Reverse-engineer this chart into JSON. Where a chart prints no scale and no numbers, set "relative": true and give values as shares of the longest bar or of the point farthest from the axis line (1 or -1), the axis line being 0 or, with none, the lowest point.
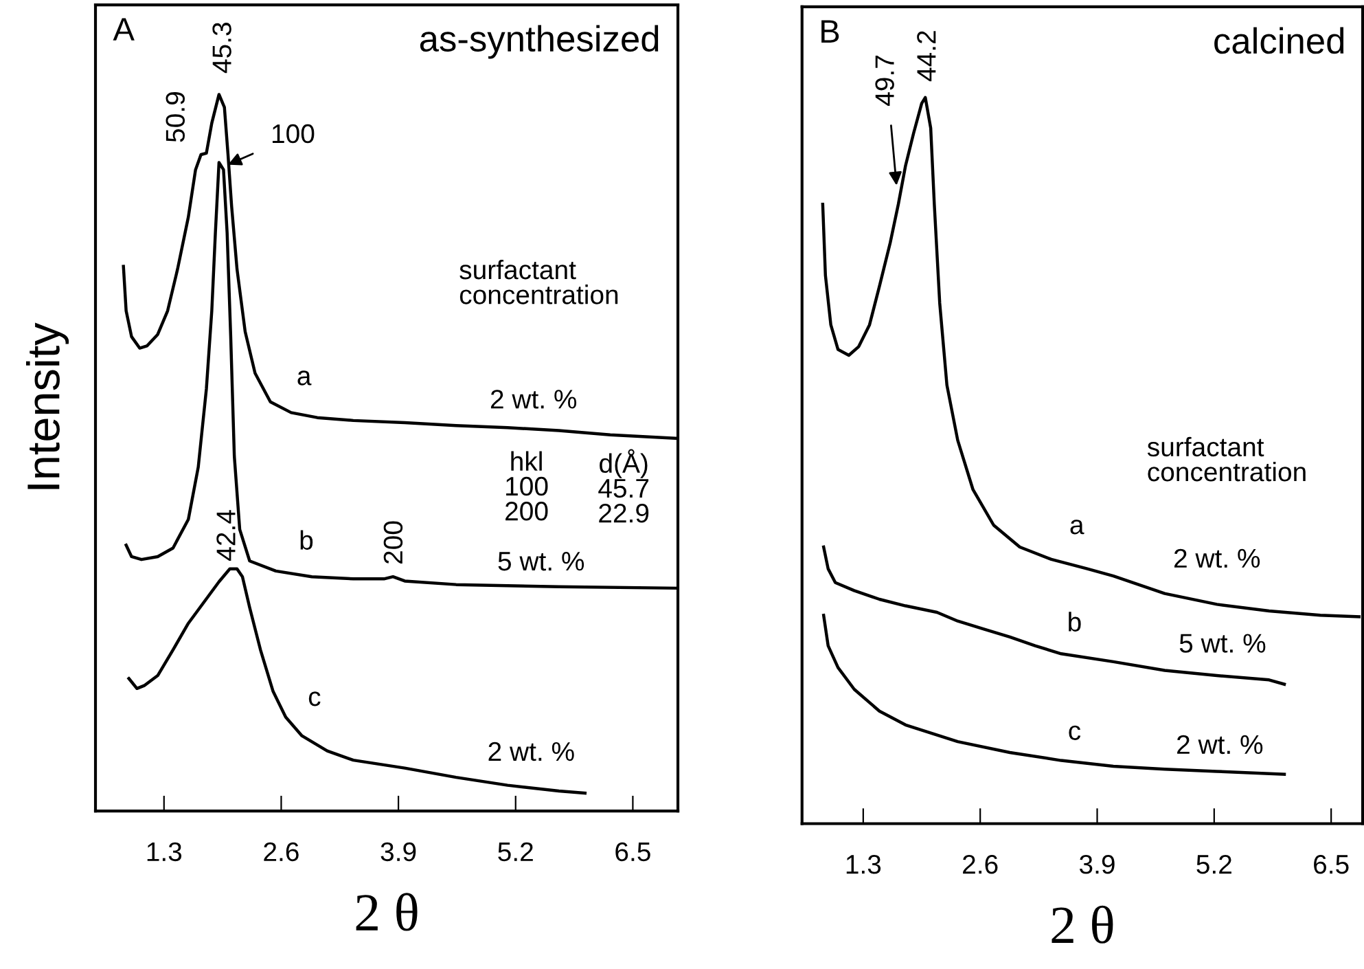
{
  "chart_data": [
    {
      "type": "line",
      "title": "A",
      "subtitle": "as-synthesized",
      "xlabel": "2 θ",
      "ylabel": "Intensity",
      "relative": true,
      "tick_labels": "x",
      "xlim": [
        0.54,
        7.0
      ],
      "xticks": [
        1.3,
        2.6,
        3.9,
        5.2,
        6.5
      ],
      "line_style": "solid",
      "series": [
        {
          "color": "#000000",
          "x": [
            0.85,
            0.88,
            0.94,
            1.03,
            1.11,
            1.23,
            1.34,
            1.45,
            1.57,
            1.65,
            1.71,
            1.77,
            1.83,
            1.91,
            1.97,
            2.01,
            2.05,
            2.11,
            2.2,
            2.31,
            2.48,
            2.71,
            3.0,
            3.4,
            3.97,
            4.54,
            5.11,
            5.68,
            6.25,
            7.0
          ],
          "values": [
            0.76,
            0.698,
            0.662,
            0.646,
            0.649,
            0.665,
            0.698,
            0.756,
            0.829,
            0.895,
            0.916,
            0.918,
            0.96,
            1.0,
            0.982,
            0.916,
            0.844,
            0.756,
            0.669,
            0.611,
            0.571,
            0.556,
            0.549,
            0.545,
            0.542,
            0.538,
            0.535,
            0.531,
            0.525,
            0.52
          ]
        },
        {
          "color": "#000000",
          "x": [
            0.88,
            0.94,
            1.05,
            1.23,
            1.4,
            1.57,
            1.68,
            1.77,
            1.83,
            1.87,
            1.91,
            1.96,
            2.0,
            2.04,
            2.08,
            2.14,
            2.25,
            2.54,
            2.94,
            3.4,
            3.74,
            3.84,
            3.97,
            4.54,
            5.68,
            7.0
          ],
          "values": [
            0.371,
            0.355,
            0.351,
            0.355,
            0.367,
            0.407,
            0.48,
            0.589,
            0.698,
            0.807,
            0.905,
            0.895,
            0.807,
            0.662,
            0.495,
            0.393,
            0.349,
            0.335,
            0.327,
            0.324,
            0.324,
            0.327,
            0.321,
            0.316,
            0.313,
            0.311
          ]
        },
        {
          "color": "#000000",
          "x": [
            0.91,
            1.0,
            1.08,
            1.23,
            1.4,
            1.57,
            1.74,
            1.91,
            2.03,
            2.11,
            2.17,
            2.25,
            2.37,
            2.51,
            2.65,
            2.83,
            3.11,
            3.4,
            3.97,
            4.54,
            5.11,
            5.68,
            5.97
          ],
          "values": [
            0.185,
            0.171,
            0.175,
            0.189,
            0.225,
            0.262,
            0.291,
            0.32,
            0.338,
            0.338,
            0.327,
            0.284,
            0.225,
            0.167,
            0.131,
            0.105,
            0.084,
            0.071,
            0.06,
            0.047,
            0.036,
            0.028,
            0.025
          ]
        }
      ],
      "annotations": [
        "50.9",
        "45.3",
        {
          "text": "100",
          "x": 2.01,
          "y": 0.902
        },
        "a",
        "2 wt. %",
        "hkl\n100\n200",
        "d(Å)\n45.7\n22.9",
        "b",
        "200",
        "5 wt. %",
        "42.4",
        "c",
        "2 wt. %",
        "surfactant\nconcentration"
      ]
    },
    {
      "type": "line",
      "title": "B",
      "subtitle": "calcined",
      "xlabel": "2 θ",
      "relative": true,
      "tick_labels": "x",
      "xlim": [
        0.62,
        6.85
      ],
      "xticks": [
        1.3,
        2.6,
        3.9,
        5.2,
        6.5
      ],
      "line_style": "solid",
      "series": [
        {
          "color": "#000000",
          "x": [
            0.85,
            0.88,
            0.94,
            1.02,
            1.14,
            1.25,
            1.37,
            1.48,
            1.6,
            1.69,
            1.77,
            1.86,
            1.95,
            1.99,
            2.05,
            2.09,
            2.15,
            2.23,
            2.35,
            2.52,
            2.75,
            3.04,
            3.39,
            3.79,
            4.08,
            4.65,
            5.23,
            5.81,
            6.38,
            6.81
          ],
          "values": [
            0.853,
            0.755,
            0.687,
            0.653,
            0.645,
            0.657,
            0.687,
            0.74,
            0.8,
            0.853,
            0.906,
            0.951,
            0.992,
            1.0,
            0.958,
            0.853,
            0.717,
            0.604,
            0.528,
            0.46,
            0.411,
            0.381,
            0.364,
            0.351,
            0.341,
            0.317,
            0.302,
            0.293,
            0.287,
            0.285
          ]
        },
        {
          "color": "#000000",
          "x": [
            0.86,
            0.91,
            0.99,
            1.2,
            1.48,
            1.77,
            2.12,
            2.35,
            2.64,
            2.93,
            3.21,
            3.5,
            4.08,
            4.65,
            5.23,
            5.81,
            5.98
          ],
          "values": [
            0.381,
            0.351,
            0.332,
            0.321,
            0.309,
            0.3,
            0.291,
            0.279,
            0.268,
            0.257,
            0.245,
            0.234,
            0.223,
            0.211,
            0.204,
            0.198,
            0.192
          ]
        },
        {
          "color": "#000000",
          "x": [
            0.86,
            0.91,
            1.02,
            1.2,
            1.48,
            1.77,
            2.35,
            2.93,
            3.5,
            4.08,
            4.65,
            5.23,
            5.98
          ],
          "values": [
            0.287,
            0.245,
            0.215,
            0.185,
            0.155,
            0.136,
            0.113,
            0.098,
            0.087,
            0.079,
            0.075,
            0.072,
            0.068
          ]
        }
      ],
      "annotations": [
        {
          "text": "49.7",
          "x": 1.67,
          "y": 0.879
        },
        "44.2",
        "a",
        "2 wt. %",
        "b",
        "5 wt. %",
        "c",
        "2 wt. %",
        "surfactant\nconcentration"
      ]
    }
  ]
}
